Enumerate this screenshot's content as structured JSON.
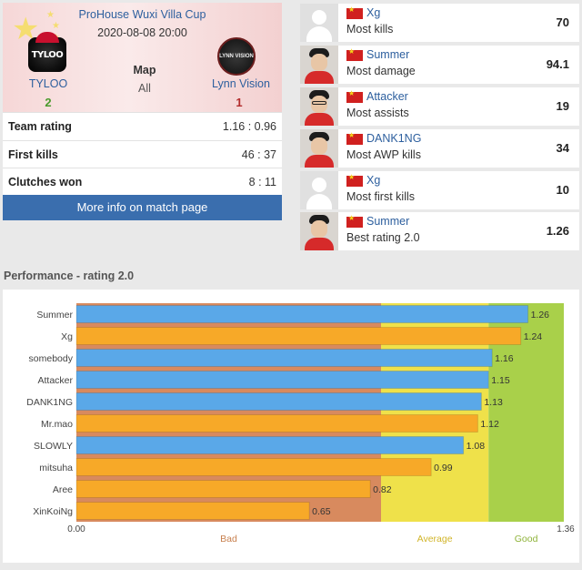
{
  "match": {
    "event": "ProHouse Wuxi Villa Cup",
    "datetime": "2020-08-08 20:00",
    "team1": {
      "name": "TYLOO",
      "score": "2",
      "logo_text": "TYLOO"
    },
    "team2": {
      "name": "Lynn Vision",
      "score": "1",
      "logo_text": "LYNN VISION"
    },
    "map_label": "Map",
    "map_value": "All",
    "stats": [
      {
        "label": "Team rating",
        "value": "1.16 : 0.96"
      },
      {
        "label": "First kills",
        "value": "46 : 37"
      },
      {
        "label": "Clutches won",
        "value": "8 : 11"
      }
    ],
    "more_button": "More info on match page"
  },
  "top_players": [
    {
      "name": "Xg",
      "stat": "Most kills",
      "value": "70",
      "avatar": "placeholder"
    },
    {
      "name": "Summer",
      "stat": "Most damage",
      "value": "94.1",
      "avatar": "photo"
    },
    {
      "name": "Attacker",
      "stat": "Most assists",
      "value": "19",
      "avatar": "photo-glasses"
    },
    {
      "name": "DANK1NG",
      "stat": "Most AWP kills",
      "value": "34",
      "avatar": "photo"
    },
    {
      "name": "Xg",
      "stat": "Most first kills",
      "value": "10",
      "avatar": "placeholder"
    },
    {
      "name": "Summer",
      "stat": "Best rating 2.0",
      "value": "1.26",
      "avatar": "photo"
    }
  ],
  "performance": {
    "title": "Performance - rating 2.0"
  },
  "colors": {
    "link": "#2d5f9e",
    "button": "#3a6eae",
    "team1_bar": "#5aa8e8",
    "team2_bar": "#f7a928",
    "zone_bad": "#d88a5e",
    "zone_average": "#efe14a",
    "zone_good": "#a9d04a",
    "win": "#4a9a2d",
    "lose": "#b22b2b"
  },
  "chart_data": {
    "type": "bar",
    "orientation": "horizontal",
    "categories": [
      "Summer",
      "Xg",
      "somebody",
      "Attacker",
      "DANK1NG",
      "Mr.mao",
      "SLOWLY",
      "mitsuha",
      "Aree",
      "XinKoiNg"
    ],
    "values": [
      1.26,
      1.24,
      1.16,
      1.15,
      1.13,
      1.12,
      1.08,
      0.99,
      0.82,
      0.65
    ],
    "bar_colors": [
      "blue",
      "orange",
      "blue",
      "blue",
      "blue",
      "orange",
      "blue",
      "orange",
      "orange",
      "orange"
    ],
    "value_labels": [
      "1.26",
      "1.24",
      "1.16",
      "1.15",
      "1.13",
      "1.12",
      "1.08",
      "0.99",
      "0.82",
      "0.65"
    ],
    "xlim": [
      0,
      1.36
    ],
    "x_tick_labels": [
      "0.00",
      "1.36"
    ],
    "zones": [
      {
        "label": "Bad",
        "from": 0,
        "to": 0.85
      },
      {
        "label": "Average",
        "from": 0.85,
        "to": 1.15
      },
      {
        "label": "Good",
        "from": 1.15,
        "to": 1.36
      }
    ],
    "grid": false
  }
}
